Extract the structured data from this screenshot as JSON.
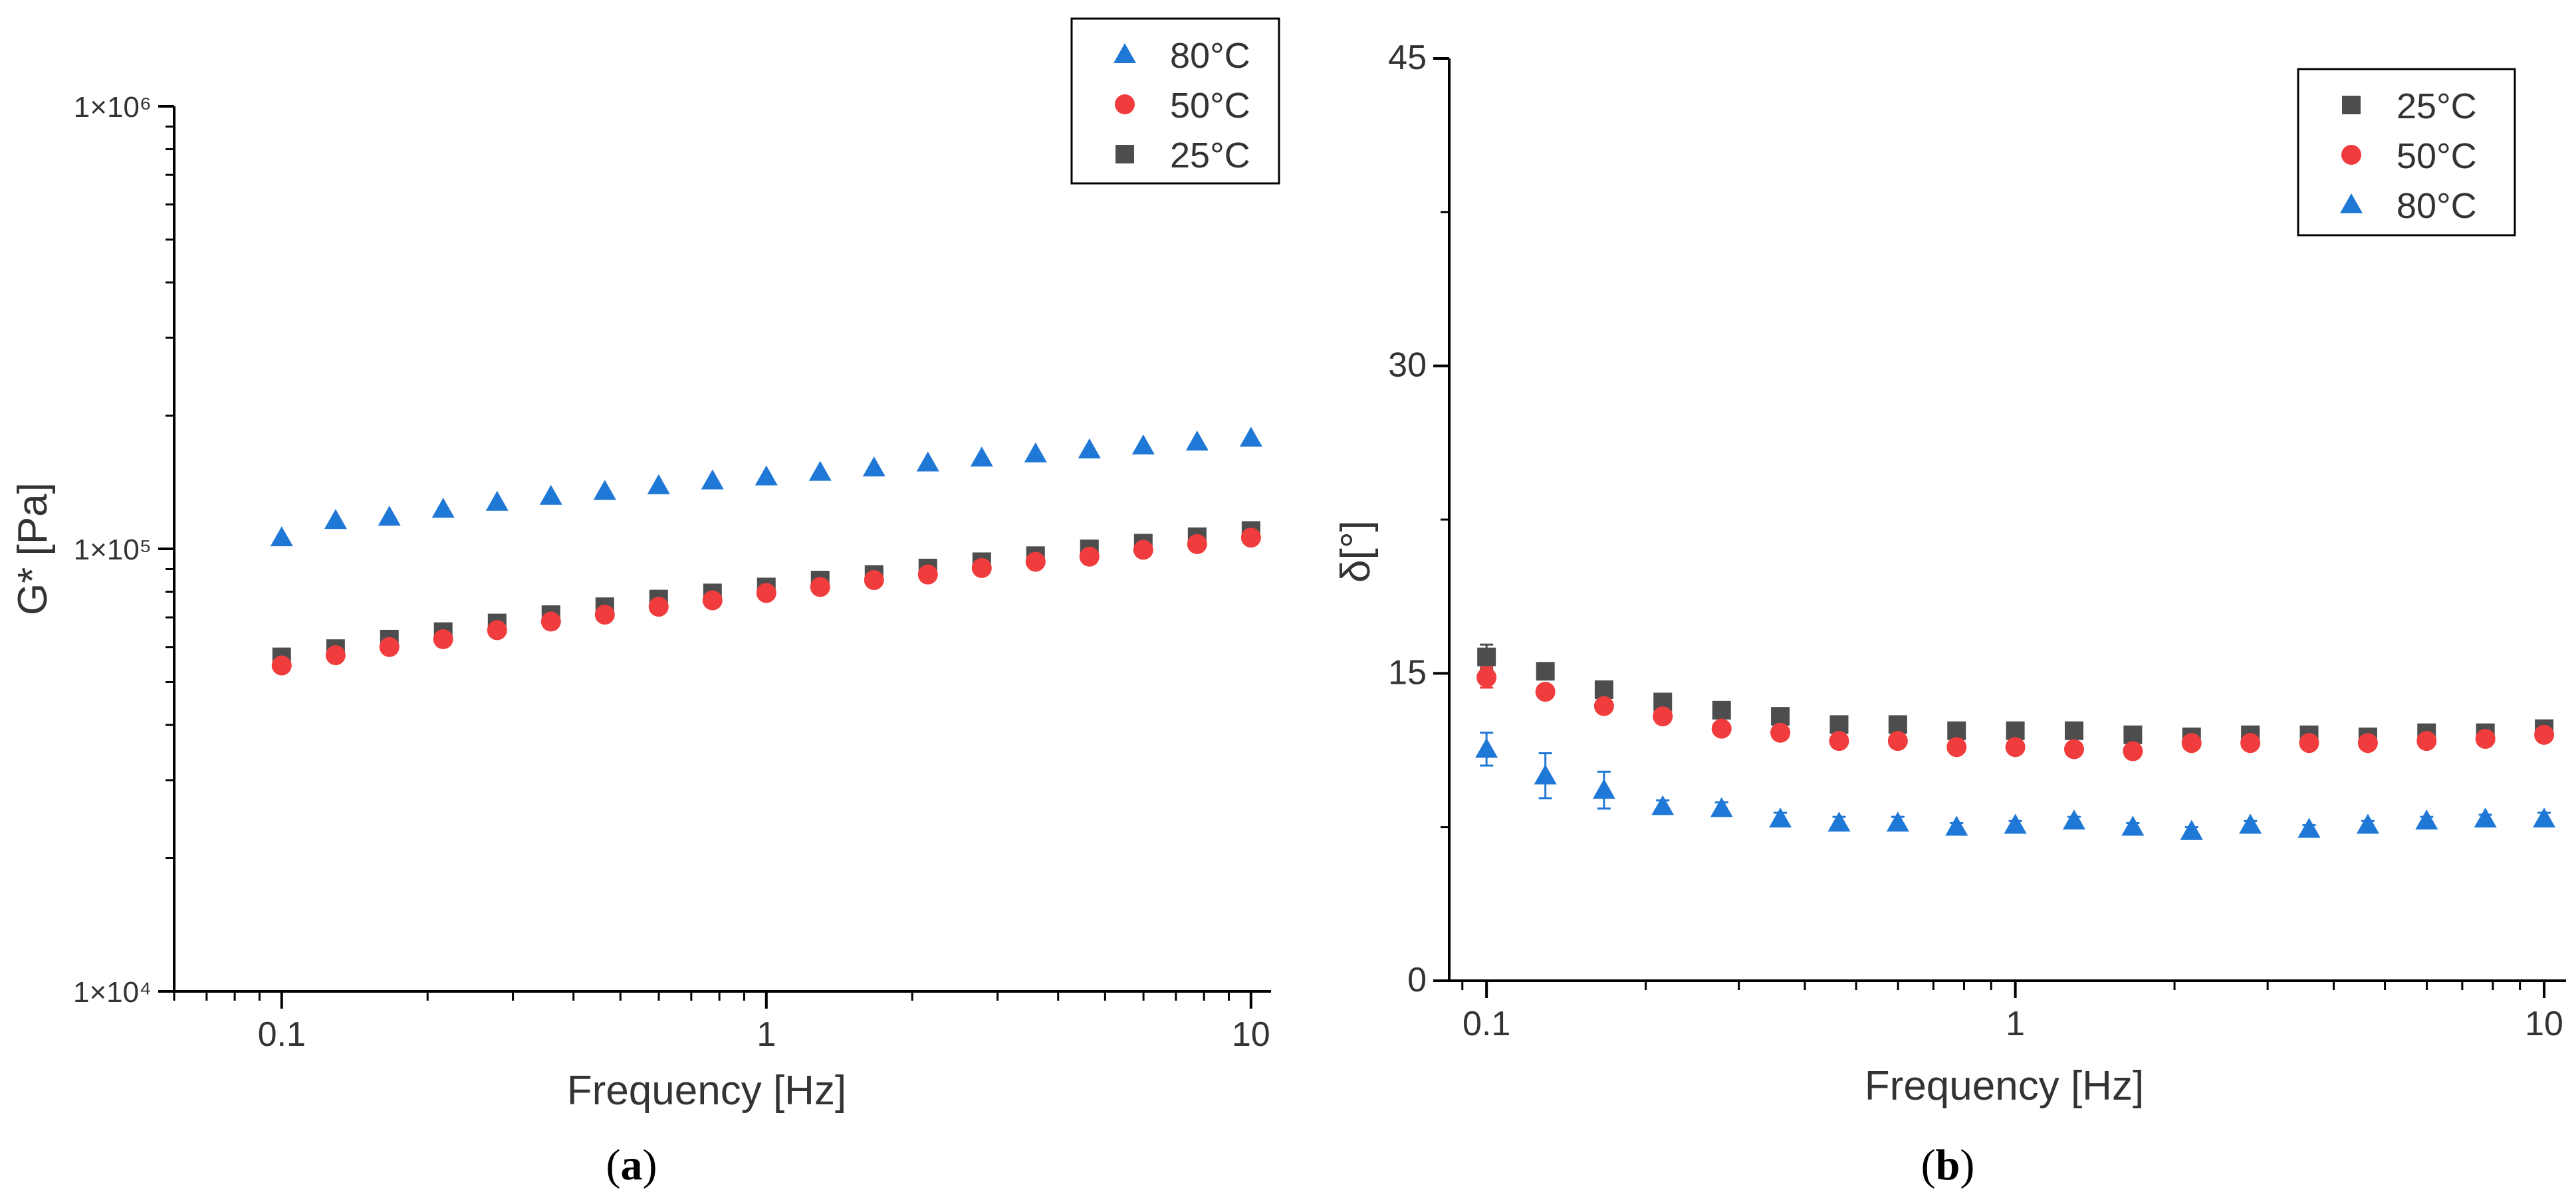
{
  "chart_data": [
    {
      "id": "a",
      "type": "scatter",
      "caption_letter": "a",
      "xscale": "log",
      "yscale": "log",
      "xlabel": "Frequency [Hz]",
      "ylabel": "G* [Pa]",
      "xlim": [
        0.06,
        11
      ],
      "ylim": [
        10000,
        1000000
      ],
      "x_ticks": [
        {
          "value": 0.1,
          "label": "0.1"
        },
        {
          "value": 1,
          "label": "1"
        },
        {
          "value": 10,
          "label": "10"
        }
      ],
      "y_ticks": [
        {
          "value": 10000,
          "label": "1×10⁴"
        },
        {
          "value": 100000,
          "label": "1×10⁵"
        },
        {
          "value": 1000000,
          "label": "1×10⁶"
        }
      ],
      "legend_position": "top-right",
      "legend_order": [
        "80°C",
        "50°C",
        "25°C"
      ],
      "x": [
        0.1,
        0.1292,
        0.1668,
        0.2154,
        0.2783,
        0.3594,
        0.4642,
        0.5995,
        0.7743,
        1.0,
        1.2915,
        1.6681,
        2.1544,
        2.7826,
        3.5938,
        4.6416,
        5.9948,
        7.7426,
        10.0
      ],
      "series": [
        {
          "name": "25°C",
          "marker": "square",
          "color": "#4d4d4d",
          "values": [
            57000,
            59500,
            62500,
            65000,
            68000,
            71000,
            74000,
            77000,
            79500,
            82000,
            85000,
            87500,
            90500,
            93500,
            96500,
            100000,
            103000,
            106500,
            110000
          ]
        },
        {
          "name": "50°C",
          "marker": "circle",
          "color": "#f03c3c",
          "values": [
            54500,
            57500,
            60000,
            62500,
            65500,
            68500,
            71000,
            74000,
            76500,
            79500,
            82000,
            85000,
            87500,
            90500,
            93500,
            96000,
            99500,
            102500,
            106000
          ]
        },
        {
          "name": "80°C",
          "marker": "triangle",
          "color": "#1f78d6",
          "values": [
            106000,
            116000,
            118000,
            123000,
            127500,
            131500,
            135000,
            139000,
            142500,
            145500,
            149000,
            152500,
            156500,
            160500,
            164000,
            167500,
            171000,
            174500,
            178000
          ]
        }
      ]
    },
    {
      "id": "b",
      "type": "scatter",
      "caption_letter": "b",
      "xscale": "log",
      "yscale": "linear",
      "xlabel": "Frequency [Hz]",
      "ylabel": "δ[°]",
      "xlim": [
        0.085,
        11
      ],
      "ylim": [
        0,
        45
      ],
      "x_ticks": [
        {
          "value": 0.1,
          "label": "0.1"
        },
        {
          "value": 1,
          "label": "1"
        },
        {
          "value": 10,
          "label": "10"
        }
      ],
      "y_ticks": [
        {
          "value": 0,
          "label": "0"
        },
        {
          "value": 15,
          "label": "15"
        },
        {
          "value": 30,
          "label": "30"
        },
        {
          "value": 45,
          "label": "45"
        }
      ],
      "legend_position": "top-right",
      "legend_order": [
        "25°C",
        "50°C",
        "80°C"
      ],
      "x": [
        0.1,
        0.1292,
        0.1668,
        0.2154,
        0.2783,
        0.3594,
        0.4642,
        0.5995,
        0.7743,
        1.0,
        1.2915,
        1.6681,
        2.1544,
        2.7826,
        3.5938,
        4.6416,
        5.9948,
        7.7426,
        10.0
      ],
      "series": [
        {
          "name": "25°C",
          "marker": "square",
          "color": "#4d4d4d",
          "values": [
            15.8,
            15.1,
            14.2,
            13.6,
            13.2,
            12.9,
            12.5,
            12.5,
            12.2,
            12.2,
            12.2,
            12.0,
            11.9,
            12.0,
            12.0,
            11.9,
            12.1,
            12.1,
            12.3
          ],
          "errors": [
            0.6,
            0.3,
            0.2,
            0.2,
            0.2,
            0.2,
            0.1,
            0.1,
            0.1,
            0.1,
            0.1,
            0.1,
            0.1,
            0.1,
            0.1,
            0.1,
            0.1,
            0.1,
            0.1
          ]
        },
        {
          "name": "50°C",
          "marker": "circle",
          "color": "#f03c3c",
          "values": [
            14.8,
            14.1,
            13.4,
            12.9,
            12.3,
            12.1,
            11.7,
            11.7,
            11.4,
            11.4,
            11.3,
            11.2,
            11.6,
            11.6,
            11.6,
            11.6,
            11.7,
            11.8,
            12.0
          ],
          "errors": [
            0.5,
            0.3,
            0.2,
            0.2,
            0.2,
            0.2,
            0.1,
            0.1,
            0.1,
            0.1,
            0.1,
            0.1,
            0.1,
            0.1,
            0.1,
            0.1,
            0.1,
            0.1,
            0.1
          ]
        },
        {
          "name": "80°C",
          "marker": "triangle",
          "color": "#1f78d6",
          "values": [
            11.3,
            10.0,
            9.3,
            8.5,
            8.4,
            7.9,
            7.7,
            7.7,
            7.5,
            7.6,
            7.8,
            7.5,
            7.3,
            7.6,
            7.4,
            7.6,
            7.8,
            7.9,
            7.9
          ],
          "errors": [
            0.8,
            1.1,
            0.9,
            0.3,
            0.3,
            0.3,
            0.3,
            0.3,
            0.2,
            0.2,
            0.2,
            0.2,
            0.2,
            0.2,
            0.2,
            0.2,
            0.2,
            0.2,
            0.3
          ]
        }
      ]
    }
  ]
}
